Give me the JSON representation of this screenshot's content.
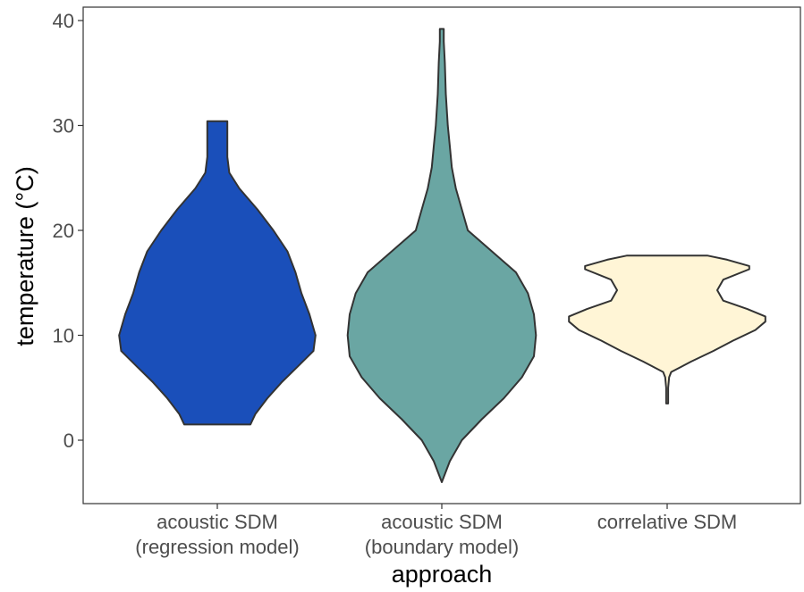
{
  "chart_data": {
    "type": "violin",
    "xlabel": "approach",
    "ylabel": "temperature (°C)",
    "ylim": [
      -6,
      41
    ],
    "yticks": [
      0,
      10,
      20,
      30,
      40
    ],
    "grid": false,
    "categories": [
      {
        "line1": "acoustic SDM",
        "line2": "(regression model)"
      },
      {
        "line1": "acoustic SDM",
        "line2": "(boundary model)"
      },
      {
        "line1": "correlative SDM",
        "line2": ""
      }
    ],
    "violins": [
      {
        "category": "acoustic SDM (regression model)",
        "color": "#1a4fba",
        "min": 1.5,
        "max": 30.4,
        "profile": [
          [
            1.5,
            0.33
          ],
          [
            2.5,
            0.38
          ],
          [
            4,
            0.5
          ],
          [
            5.5,
            0.64
          ],
          [
            7,
            0.8
          ],
          [
            8.5,
            0.96
          ],
          [
            10,
            0.98
          ],
          [
            12,
            0.92
          ],
          [
            14,
            0.84
          ],
          [
            16,
            0.78
          ],
          [
            18,
            0.7
          ],
          [
            20,
            0.56
          ],
          [
            22,
            0.4
          ],
          [
            24,
            0.22
          ],
          [
            25.5,
            0.12
          ],
          [
            27,
            0.1
          ],
          [
            29,
            0.1
          ],
          [
            30.4,
            0.1
          ]
        ]
      },
      {
        "category": "acoustic SDM (boundary model)",
        "color": "#6aa6a3",
        "min": -4,
        "max": 39.2,
        "profile": [
          [
            -4,
            0
          ],
          [
            -2,
            0.08
          ],
          [
            0,
            0.2
          ],
          [
            2,
            0.4
          ],
          [
            4,
            0.62
          ],
          [
            6,
            0.8
          ],
          [
            8,
            0.92
          ],
          [
            10,
            0.94
          ],
          [
            12,
            0.92
          ],
          [
            14,
            0.86
          ],
          [
            16,
            0.74
          ],
          [
            18,
            0.5
          ],
          [
            20,
            0.26
          ],
          [
            22,
            0.2
          ],
          [
            24,
            0.14
          ],
          [
            26,
            0.1
          ],
          [
            28,
            0.08
          ],
          [
            30,
            0.06
          ],
          [
            33,
            0.04
          ],
          [
            36,
            0.03
          ],
          [
            38,
            0.02
          ],
          [
            39.2,
            0.02
          ]
        ]
      },
      {
        "category": "correlative SDM",
        "color": "#fff5d6",
        "min": 3.5,
        "max": 17.6,
        "profile": [
          [
            3.5,
            0.01
          ],
          [
            5,
            0.01
          ],
          [
            6,
            0.02
          ],
          [
            6.5,
            0.04
          ],
          [
            7.5,
            0.24
          ],
          [
            8.5,
            0.46
          ],
          [
            9.5,
            0.66
          ],
          [
            10.5,
            0.88
          ],
          [
            11.3,
            0.98
          ],
          [
            11.8,
            0.98
          ],
          [
            12.5,
            0.8
          ],
          [
            13.3,
            0.56
          ],
          [
            14.3,
            0.5
          ],
          [
            15.3,
            0.56
          ],
          [
            16.3,
            0.82
          ],
          [
            16.6,
            0.82
          ],
          [
            17.2,
            0.6
          ],
          [
            17.6,
            0.4
          ]
        ]
      }
    ]
  }
}
